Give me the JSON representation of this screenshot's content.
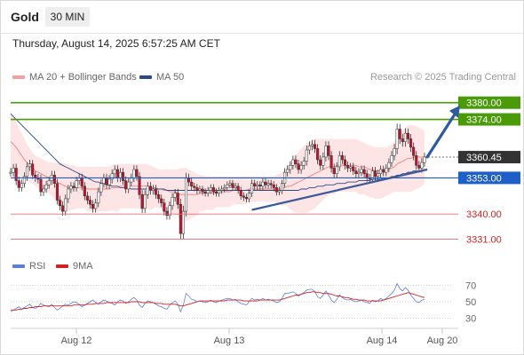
{
  "header": {
    "title": "Gold",
    "interval": "30 MIN",
    "timestamp": "Thursday, August 14, 2025 6:57:25 AM CET"
  },
  "legend": {
    "ma20": "MA 20 + Bollinger Bands",
    "ma50": "MA 50",
    "rsi": "RSI",
    "ma9": "9MA"
  },
  "copyright": "Research © 2025 Trading Central",
  "colors": {
    "ma20": "#f08080",
    "ma50": "#2c4a8a",
    "bands": "#fde0e0",
    "candle": "#c8102e",
    "resistance": "#4a9a0a",
    "pivot": "#1f5fc8",
    "support": "#e07070",
    "current": "#333333",
    "rsi": "#5b7fd6",
    "rsi_ma": "#d62020"
  },
  "chart_data": {
    "type": "candlestick",
    "x_ticks": [
      "Aug 12",
      "Aug 13",
      "Aug 14",
      "Aug 20"
    ],
    "price_levels": [
      {
        "label": "3380.00",
        "value": 3380.0,
        "kind": "resistance"
      },
      {
        "label": "3374.00",
        "value": 3374.0,
        "kind": "resistance"
      },
      {
        "label": "3360.45",
        "value": 3360.45,
        "kind": "current"
      },
      {
        "label": "3353.00",
        "value": 3353.0,
        "kind": "pivot"
      },
      {
        "label": "3340.00",
        "value": 3340.0,
        "kind": "support"
      },
      {
        "label": "3331.00",
        "value": 3331.0,
        "kind": "support"
      }
    ],
    "ylim": [
      3327,
      3385
    ],
    "close": [
      3355.0,
      3356.5,
      3352.0,
      3349.5,
      3351.0,
      3353.5,
      3357.0,
      3358.0,
      3354.0,
      3353.0,
      3352.5,
      3348.0,
      3349.0,
      3350.5,
      3352.0,
      3354.0,
      3351.0,
      3345.0,
      3343.0,
      3341.0,
      3345.5,
      3349.0,
      3350.0,
      3349.5,
      3352.0,
      3353.0,
      3350.0,
      3346.5,
      3345.0,
      3343.5,
      3342.0,
      3344.0,
      3348.0,
      3351.0,
      3353.0,
      3350.5,
      3352.5,
      3354.5,
      3356.0,
      3353.0,
      3355.0,
      3352.0,
      3349.0,
      3351.5,
      3353.0,
      3356.0,
      3353.5,
      3347.0,
      3342.0,
      3347.0,
      3350.0,
      3348.5,
      3349.0,
      3347.0,
      3345.5,
      3344.0,
      3341.0,
      3339.5,
      3343.0,
      3346.0,
      3347.5,
      3343.5,
      3333.0,
      3341.0,
      3353.0,
      3351.5,
      3350.0,
      3349.5,
      3348.5,
      3349.0,
      3348.0,
      3347.5,
      3348.5,
      3349.5,
      3348.0,
      3347.5,
      3348.5,
      3349.0,
      3349.5,
      3350.5,
      3351.0,
      3349.5,
      3350.0,
      3348.5,
      3346.5,
      3346.0,
      3345.5,
      3347.5,
      3351.0,
      3350.0,
      3350.5,
      3350.0,
      3351.5,
      3350.5,
      3351.0,
      3350.5,
      3349.5,
      3348.0,
      3348.5,
      3351.0,
      3355.0,
      3356.0,
      3357.5,
      3359.5,
      3358.0,
      3356.0,
      3357.5,
      3359.0,
      3363.0,
      3364.5,
      3365.0,
      3363.5,
      3359.5,
      3357.5,
      3360.5,
      3364.5,
      3361.0,
      3356.5,
      3354.5,
      3357.0,
      3361.0,
      3359.5,
      3357.5,
      3356.5,
      3357.0,
      3355.5,
      3354.5,
      3355.0,
      3356.0,
      3354.5,
      3353.0,
      3352.5,
      3355.5,
      3353.5,
      3354.5,
      3356.0,
      3355.0,
      3356.5,
      3358.5,
      3361.0,
      3363.5,
      3370.5,
      3367.0,
      3366.0,
      3369.0,
      3367.0,
      3364.0,
      3361.0,
      3357.5,
      3356.5,
      3358.5,
      3360.5
    ],
    "volatility": [
      1.5,
      1.5,
      1.6,
      1.5,
      1.4,
      1.5,
      1.6,
      1.5,
      1.4,
      1.4,
      1.5,
      1.6,
      1.5,
      1.4,
      1.4,
      1.5,
      1.5,
      1.6,
      1.6,
      1.6,
      1.5,
      1.5,
      1.5,
      1.4,
      1.4,
      1.5,
      1.5,
      1.5,
      1.5,
      1.5,
      1.5,
      1.5,
      1.5,
      1.5,
      1.5,
      1.5,
      1.5,
      1.5,
      1.5,
      1.5,
      1.5,
      1.5,
      1.5,
      1.5,
      1.5,
      1.5,
      1.5,
      1.6,
      1.6,
      1.6,
      1.5,
      1.5,
      1.5,
      1.5,
      1.5,
      1.5,
      1.5,
      1.5,
      1.5,
      1.5,
      1.5,
      1.6,
      2.0,
      2.0,
      1.8,
      1.5,
      1.4,
      1.3,
      1.3,
      1.2,
      1.2,
      1.2,
      1.2,
      1.2,
      1.2,
      1.2,
      1.2,
      1.2,
      1.2,
      1.2,
      1.2,
      1.2,
      1.2,
      1.2,
      1.3,
      1.3,
      1.3,
      1.3,
      1.4,
      1.3,
      1.3,
      1.3,
      1.3,
      1.3,
      1.3,
      1.3,
      1.3,
      1.3,
      1.3,
      1.3,
      1.5,
      1.5,
      1.5,
      1.5,
      1.5,
      1.5,
      1.5,
      1.5,
      1.6,
      1.6,
      1.6,
      1.6,
      1.6,
      1.6,
      1.6,
      1.6,
      1.6,
      1.6,
      1.6,
      1.6,
      1.6,
      1.5,
      1.5,
      1.4,
      1.4,
      1.4,
      1.4,
      1.4,
      1.4,
      1.4,
      1.4,
      1.4,
      1.4,
      1.4,
      1.4,
      1.4,
      1.4,
      1.4,
      1.5,
      1.6,
      1.7,
      2.0,
      1.8,
      1.8,
      1.8,
      1.7,
      1.7,
      1.7,
      1.6,
      1.6,
      1.6,
      1.5
    ],
    "ma20": [
      3366.0,
      3365.0,
      3364.0,
      3362.5,
      3361.0,
      3359.5,
      3358.5,
      3357.5,
      3356.5,
      3355.5,
      3355.0,
      3354.5,
      3354.0,
      3353.5,
      3353.0,
      3352.5,
      3352.0,
      3351.5,
      3351.0,
      3350.5,
      3350.0,
      3349.5,
      3349.5,
      3349.5,
      3349.5,
      3349.5,
      3349.5,
      3349.5,
      3349.0,
      3349.0,
      3349.0,
      3349.0,
      3349.0,
      3349.0,
      3349.0,
      3349.0,
      3349.0,
      3349.5,
      3349.5,
      3349.5,
      3350.0,
      3350.0,
      3350.0,
      3350.0,
      3350.0,
      3350.0,
      3350.0,
      3350.0,
      3350.0,
      3350.0,
      3350.0,
      3349.5,
      3349.5,
      3349.5,
      3349.0,
      3349.0,
      3348.5,
      3348.5,
      3348.0,
      3348.0,
      3348.0,
      3347.5,
      3347.0,
      3347.0,
      3347.0,
      3347.0,
      3347.0,
      3347.0,
      3347.0,
      3347.5,
      3347.5,
      3347.5,
      3347.5,
      3347.5,
      3347.5,
      3348.0,
      3348.0,
      3348.0,
      3348.0,
      3348.0,
      3348.0,
      3348.5,
      3348.5,
      3348.5,
      3348.5,
      3348.5,
      3348.5,
      3349.0,
      3349.0,
      3349.0,
      3349.0,
      3349.0,
      3349.0,
      3349.0,
      3349.0,
      3349.0,
      3349.0,
      3349.0,
      3349.0,
      3349.0,
      3349.5,
      3350.0,
      3350.0,
      3350.5,
      3351.0,
      3351.5,
      3352.0,
      3352.5,
      3353.0,
      3353.5,
      3354.0,
      3354.5,
      3355.0,
      3355.5,
      3356.0,
      3356.5,
      3357.0,
      3357.0,
      3357.0,
      3357.5,
      3357.5,
      3357.5,
      3357.5,
      3357.5,
      3357.5,
      3357.5,
      3357.5,
      3357.0,
      3357.0,
      3357.0,
      3356.5,
      3356.0,
      3356.0,
      3355.5,
      3355.5,
      3355.5,
      3355.5,
      3355.5,
      3356.0,
      3356.5,
      3357.0,
      3358.0,
      3358.5,
      3359.0,
      3359.5,
      3360.0,
      3360.0,
      3360.5,
      3360.5,
      3360.5,
      3360.5,
      3360.5
    ],
    "ma50": [
      3376.0,
      3375.0,
      3374.0,
      3373.0,
      3372.0,
      3371.0,
      3370.0,
      3369.0,
      3368.0,
      3367.0,
      3366.0,
      3365.0,
      3364.0,
      3363.0,
      3362.0,
      3361.0,
      3360.0,
      3359.0,
      3358.0,
      3357.5,
      3357.0,
      3356.5,
      3356.0,
      3355.5,
      3355.0,
      3354.5,
      3354.0,
      3353.5,
      3353.0,
      3352.5,
      3352.0,
      3351.5,
      3351.5,
      3351.0,
      3351.0,
      3350.5,
      3350.5,
      3350.0,
      3350.0,
      3350.0,
      3349.5,
      3349.5,
      3349.5,
      3349.5,
      3349.0,
      3349.0,
      3349.0,
      3349.0,
      3349.0,
      3349.0,
      3349.0,
      3349.0,
      3349.0,
      3349.0,
      3349.0,
      3349.0,
      3349.0,
      3348.5,
      3348.5,
      3348.5,
      3348.5,
      3348.5,
      3348.5,
      3348.5,
      3348.5,
      3348.5,
      3348.5,
      3348.5,
      3348.5,
      3348.5,
      3348.5,
      3348.5,
      3348.5,
      3348.5,
      3348.5,
      3348.5,
      3348.5,
      3348.5,
      3348.5,
      3348.5,
      3348.5,
      3348.5,
      3348.5,
      3348.5,
      3348.5,
      3348.5,
      3348.5,
      3348.5,
      3348.5,
      3348.5,
      3348.5,
      3348.5,
      3348.5,
      3348.5,
      3348.5,
      3348.5,
      3348.5,
      3348.5,
      3348.5,
      3348.5,
      3348.5,
      3348.5,
      3348.5,
      3348.5,
      3348.5,
      3348.5,
      3349.0,
      3349.0,
      3349.0,
      3349.5,
      3349.5,
      3349.5,
      3350.0,
      3350.0,
      3350.0,
      3350.5,
      3350.5,
      3350.5,
      3350.5,
      3351.0,
      3351.0,
      3351.0,
      3351.0,
      3351.5,
      3351.5,
      3351.5,
      3351.5,
      3352.0,
      3352.0,
      3352.0,
      3352.0,
      3352.0,
      3352.5,
      3352.5,
      3352.5,
      3352.5,
      3353.0,
      3353.0,
      3353.0,
      3353.5,
      3353.5,
      3354.0,
      3354.0,
      3354.5,
      3354.5,
      3355.0,
      3355.0,
      3355.5,
      3355.5,
      3355.5,
      3355.5,
      3356.0
    ],
    "band_upper": [
      3377.0,
      3375.0,
      3373.0,
      3371.0,
      3369.0,
      3367.0,
      3365.0,
      3363.5,
      3362.0,
      3361.0,
      3360.5,
      3360.0,
      3359.5,
      3359.0,
      3358.5,
      3358.5,
      3358.5,
      3358.5,
      3358.5,
      3358.5,
      3358.0,
      3358.0,
      3357.5,
      3357.5,
      3357.0,
      3357.0,
      3357.0,
      3357.0,
      3357.0,
      3357.0,
      3357.0,
      3357.0,
      3357.0,
      3357.0,
      3357.0,
      3357.0,
      3357.0,
      3357.5,
      3358.0,
      3358.0,
      3358.0,
      3358.0,
      3358.0,
      3358.0,
      3358.0,
      3358.0,
      3358.0,
      3358.0,
      3358.0,
      3358.0,
      3358.0,
      3357.5,
      3357.0,
      3356.5,
      3356.0,
      3356.0,
      3356.0,
      3356.0,
      3356.0,
      3356.0,
      3356.0,
      3356.0,
      3356.5,
      3356.5,
      3356.5,
      3356.0,
      3355.5,
      3355.0,
      3354.5,
      3354.0,
      3354.0,
      3353.5,
      3353.5,
      3353.5,
      3353.5,
      3353.5,
      3353.5,
      3353.5,
      3353.5,
      3353.5,
      3353.5,
      3353.5,
      3353.5,
      3353.5,
      3353.5,
      3353.5,
      3353.5,
      3353.5,
      3353.5,
      3353.5,
      3353.5,
      3353.5,
      3353.5,
      3353.5,
      3353.5,
      3353.5,
      3353.5,
      3354.0,
      3354.5,
      3355.0,
      3356.0,
      3357.0,
      3358.5,
      3360.0,
      3361.5,
      3362.5,
      3363.5,
      3364.5,
      3365.5,
      3366.0,
      3366.5,
      3367.0,
      3367.0,
      3367.0,
      3367.0,
      3367.0,
      3367.0,
      3367.0,
      3367.0,
      3367.0,
      3367.0,
      3367.0,
      3367.0,
      3367.0,
      3367.0,
      3367.0,
      3367.0,
      3366.5,
      3366.0,
      3365.5,
      3365.0,
      3364.5,
      3364.5,
      3364.0,
      3364.0,
      3364.0,
      3364.0,
      3364.0,
      3364.5,
      3365.0,
      3366.0,
      3368.0,
      3369.0,
      3370.0,
      3371.0,
      3372.0,
      3372.0,
      3372.0,
      3371.5,
      3371.0,
      3370.5,
      3370.0
    ],
    "band_lower": [
      3355.0,
      3355.0,
      3355.0,
      3354.0,
      3353.0,
      3352.0,
      3352.0,
      3351.5,
      3351.0,
      3350.0,
      3349.5,
      3349.0,
      3348.5,
      3348.0,
      3347.5,
      3346.5,
      3345.5,
      3344.5,
      3343.5,
      3342.5,
      3342.0,
      3341.0,
      3341.5,
      3341.5,
      3342.0,
      3342.0,
      3342.0,
      3342.0,
      3341.0,
      3341.0,
      3341.0,
      3341.0,
      3341.0,
      3341.0,
      3341.0,
      3341.0,
      3341.0,
      3341.5,
      3341.0,
      3341.0,
      3342.0,
      3342.0,
      3342.0,
      3342.0,
      3342.0,
      3342.0,
      3342.0,
      3342.0,
      3342.0,
      3342.0,
      3342.0,
      3341.5,
      3342.0,
      3342.5,
      3342.0,
      3342.0,
      3341.0,
      3341.0,
      3340.0,
      3340.0,
      3340.0,
      3339.0,
      3337.5,
      3337.5,
      3337.5,
      3338.0,
      3338.5,
      3339.0,
      3339.5,
      3341.0,
      3341.0,
      3341.5,
      3341.5,
      3341.5,
      3341.5,
      3342.5,
      3342.5,
      3342.5,
      3342.5,
      3342.5,
      3342.5,
      3343.5,
      3343.5,
      3343.5,
      3343.5,
      3343.5,
      3343.5,
      3344.5,
      3344.5,
      3344.5,
      3344.5,
      3344.5,
      3344.5,
      3344.5,
      3344.5,
      3344.5,
      3344.5,
      3344.0,
      3343.5,
      3343.0,
      3343.0,
      3343.0,
      3341.5,
      3341.0,
      3340.5,
      3340.5,
      3340.5,
      3340.5,
      3340.5,
      3341.0,
      3341.5,
      3342.0,
      3343.0,
      3344.0,
      3345.0,
      3346.0,
      3347.0,
      3347.0,
      3347.0,
      3348.0,
      3348.0,
      3348.0,
      3348.0,
      3348.0,
      3348.0,
      3348.0,
      3348.0,
      3347.0,
      3347.0,
      3347.0,
      3346.5,
      3346.0,
      3346.0,
      3345.5,
      3345.5,
      3345.5,
      3346.0,
      3346.5,
      3347.0,
      3347.5,
      3348.0,
      3348.0,
      3348.0,
      3348.0,
      3348.0,
      3348.0,
      3348.0,
      3348.5,
      3349.0,
      3349.5,
      3350.0,
      3351.0
    ],
    "rsi": {
      "ticks": [
        70,
        50,
        30
      ],
      "ylim": [
        20,
        80
      ],
      "values": [
        38,
        40,
        42,
        44,
        41,
        43,
        45,
        47,
        43,
        42,
        44,
        48,
        46,
        45,
        44,
        47,
        43,
        40,
        42,
        45,
        47,
        46,
        48,
        50,
        49,
        47,
        44,
        46,
        48,
        50,
        52,
        49,
        47,
        50,
        52,
        51,
        49,
        48,
        46,
        50,
        52,
        51,
        48,
        50,
        53,
        55,
        52,
        46,
        43,
        48,
        51,
        50,
        49,
        47,
        45,
        44,
        42,
        41,
        46,
        49,
        51,
        47,
        38,
        46,
        60,
        57,
        53,
        52,
        50,
        51,
        50,
        49,
        50,
        52,
        50,
        49,
        51,
        52,
        53,
        54,
        54,
        52,
        53,
        50,
        48,
        47,
        46,
        50,
        54,
        52,
        53,
        52,
        54,
        52,
        53,
        52,
        51,
        49,
        50,
        54,
        60,
        60,
        61,
        62,
        60,
        57,
        59,
        61,
        64,
        65,
        65,
        62,
        56,
        54,
        58,
        63,
        58,
        52,
        49,
        53,
        58,
        55,
        53,
        52,
        53,
        51,
        50,
        51,
        52,
        50,
        49,
        48,
        52,
        50,
        51,
        54,
        52,
        54,
        57,
        60,
        64,
        72,
        66,
        63,
        67,
        64,
        58,
        54,
        50,
        49,
        52,
        53
      ],
      "ma9": [
        40,
        40,
        40,
        41,
        41,
        42,
        42,
        43,
        43,
        44,
        44,
        44,
        45,
        45,
        45,
        45,
        45,
        45,
        45,
        45,
        45,
        45,
        45,
        46,
        46,
        46,
        46,
        46,
        47,
        47,
        47,
        48,
        48,
        48,
        48,
        49,
        49,
        49,
        49,
        49,
        49,
        49,
        49,
        49,
        50,
        50,
        50,
        50,
        49,
        49,
        49,
        49,
        49,
        48,
        48,
        48,
        47,
        47,
        47,
        47,
        47,
        46,
        45,
        45,
        46,
        47,
        48,
        49,
        50,
        51,
        51,
        51,
        51,
        51,
        51,
        51,
        51,
        51,
        51,
        52,
        52,
        52,
        52,
        52,
        52,
        51,
        51,
        51,
        51,
        51,
        51,
        52,
        52,
        52,
        52,
        52,
        52,
        52,
        52,
        53,
        54,
        55,
        56,
        57,
        58,
        58,
        59,
        60,
        61,
        61,
        62,
        62,
        61,
        61,
        60,
        60,
        60,
        59,
        58,
        57,
        57,
        56,
        55,
        55,
        54,
        53,
        53,
        52,
        52,
        52,
        51,
        51,
        51,
        51,
        51,
        51,
        52,
        53,
        54,
        55,
        56,
        57,
        58,
        59,
        60,
        61,
        60,
        59,
        58,
        57,
        56,
        55
      ]
    },
    "trendlines": [
      {
        "from": [
          88,
          3341.5
        ],
        "to": [
          152,
          3356.0
        ]
      }
    ],
    "projection": {
      "from": [
        152,
        3360.5
      ],
      "to": [
        162,
        3379.0
      ]
    }
  }
}
